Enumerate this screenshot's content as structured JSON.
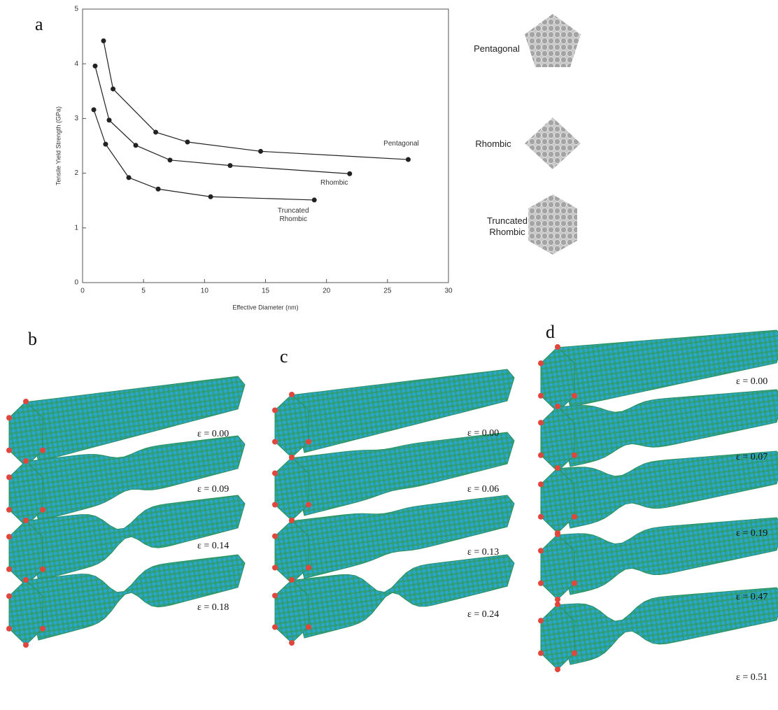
{
  "chart_data": {
    "type": "line",
    "panel_label": "a",
    "x_label": "Effective Diameter (nm)",
    "y_label": "Tensile Yield Strength (GPa)",
    "xlim": [
      0,
      30
    ],
    "xticks": [
      0,
      5,
      10,
      15,
      20,
      25,
      30
    ],
    "ylim": [
      0,
      5
    ],
    "yticks": [
      0,
      1,
      2,
      3,
      4,
      5
    ],
    "series": [
      {
        "name": "Pentagonal",
        "color": "#222222",
        "x": [
          1.72,
          2.5,
          6.0,
          8.6,
          14.6,
          26.7
        ],
        "values": [
          4.42,
          3.54,
          2.75,
          2.57,
          2.4,
          2.25
        ]
      },
      {
        "name": "Rhombic",
        "color": "#222222",
        "x": [
          1.03,
          2.18,
          4.36,
          7.17,
          12.1,
          21.9
        ],
        "values": [
          3.96,
          2.97,
          2.51,
          2.24,
          2.14,
          1.99
        ]
      },
      {
        "name": "Truncated Rhombic",
        "color": "#222222",
        "x": [
          0.92,
          1.89,
          3.79,
          6.2,
          10.5,
          19.0
        ],
        "values": [
          3.16,
          2.53,
          1.92,
          1.71,
          1.57,
          1.51
        ]
      }
    ]
  },
  "cross_sections": [
    "Pentagonal",
    "Rhombic",
    "Truncated Rhombic"
  ],
  "panels": [
    {
      "label": "b",
      "strains": [
        "ε = 0.00",
        "ε = 0.09",
        "ε = 0.14",
        "ε = 0.18"
      ]
    },
    {
      "label": "c",
      "strains": [
        "ε = 0.00",
        "ε = 0.06",
        "ε = 0.13",
        "ε = 0.24"
      ]
    },
    {
      "label": "d",
      "strains": [
        "ε = 0.00",
        "ε = 0.07",
        "ε = 0.19",
        "ε = 0.47",
        "ε = 0.51"
      ]
    }
  ]
}
